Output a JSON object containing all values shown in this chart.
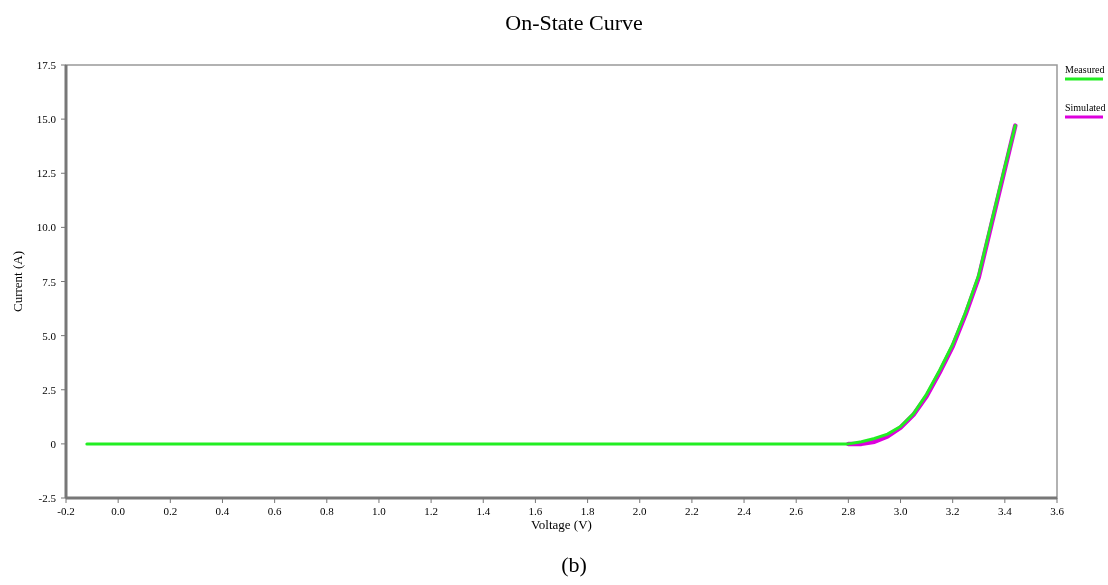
{
  "chart_data": {
    "type": "line",
    "title": "On-State Curve",
    "xlabel": "Voltage (V)",
    "ylabel": "Current (A)",
    "annotations": [
      "(b)"
    ],
    "xlim": [
      -0.2,
      3.6
    ],
    "ylim": [
      -2.5,
      17.5
    ],
    "xticks": [
      {
        "value": -0.2,
        "label": "-0.2"
      },
      {
        "value": 0,
        "label": "0.0"
      },
      {
        "value": 0.2,
        "label": "0.2"
      },
      {
        "value": 0.4,
        "label": "0.4"
      },
      {
        "value": 0.6,
        "label": "0.6"
      },
      {
        "value": 0.8,
        "label": "0.8"
      },
      {
        "value": 1,
        "label": "1.0"
      },
      {
        "value": 1.2,
        "label": "1.2"
      },
      {
        "value": 1.4,
        "label": "1.4"
      },
      {
        "value": 1.6,
        "label": "1.6"
      },
      {
        "value": 1.8,
        "label": "1.8"
      },
      {
        "value": 2,
        "label": "2.0"
      },
      {
        "value": 2.2,
        "label": "2.2"
      },
      {
        "value": 2.4,
        "label": "2.4"
      },
      {
        "value": 2.6,
        "label": "2.6"
      },
      {
        "value": 2.8,
        "label": "2.8"
      },
      {
        "value": 3,
        "label": "3.0"
      },
      {
        "value": 3.2,
        "label": "3.2"
      },
      {
        "value": 3.4,
        "label": "3.4"
      },
      {
        "value": 3.6,
        "label": "3.6"
      }
    ],
    "yticks": [
      {
        "value": -2.5,
        "label": "-2.5"
      },
      {
        "value": 0,
        "label": "0"
      },
      {
        "value": 2.5,
        "label": "2.5"
      },
      {
        "value": 5,
        "label": "5.0"
      },
      {
        "value": 7.5,
        "label": "7.5"
      },
      {
        "value": 10,
        "label": "10.0"
      },
      {
        "value": 12.5,
        "label": "12.5"
      },
      {
        "value": 15,
        "label": "15.0"
      },
      {
        "value": 17.5,
        "label": "17.5"
      }
    ],
    "grid": false,
    "legend": "top right",
    "marker": "none",
    "line_style": "solid",
    "series": [
      {
        "name": "Measured",
        "color": "#22ee22",
        "x": [
          -0.12,
          0.2,
          0.6,
          1.0,
          1.4,
          1.8,
          2.2,
          2.6,
          2.8,
          2.85,
          2.9,
          2.95,
          3.0,
          3.05,
          3.1,
          3.15,
          3.2,
          3.25,
          3.3,
          3.35,
          3.4,
          3.44
        ],
        "values": [
          0,
          0,
          0,
          0,
          0,
          0,
          0,
          0,
          0,
          0.1,
          0.25,
          0.45,
          0.8,
          1.4,
          2.3,
          3.4,
          4.6,
          6.1,
          7.8,
          10.3,
          12.8,
          14.7
        ]
      },
      {
        "name": "Simulated",
        "color": "#dd00dd",
        "x": [
          2.8,
          2.85,
          2.9,
          2.95,
          3.0,
          3.05,
          3.1,
          3.15,
          3.2,
          3.25,
          3.3,
          3.35,
          3.4,
          3.44
        ],
        "values": [
          0,
          0,
          0.1,
          0.35,
          0.75,
          1.35,
          2.2,
          3.3,
          4.5,
          6.0,
          7.7,
          10.2,
          12.7,
          14.7
        ]
      }
    ]
  }
}
